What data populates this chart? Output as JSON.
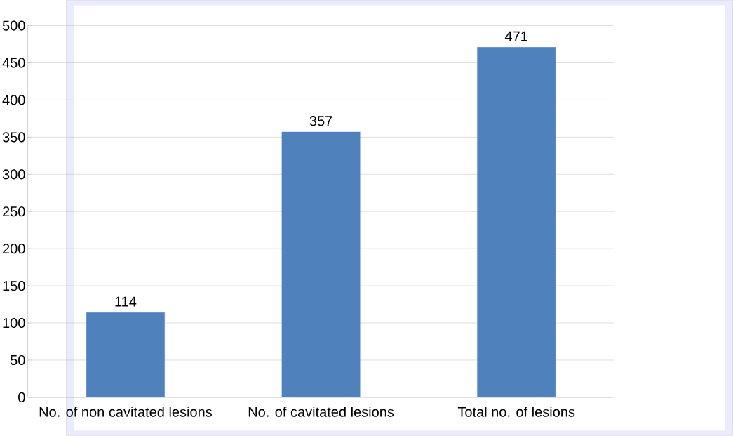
{
  "chart_data": {
    "type": "bar",
    "categories": [
      "No. of non cavitated lesions",
      "No. of cavitated lesions",
      "Total no. of lesions"
    ],
    "values": [
      114,
      357,
      471
    ],
    "color": "#4f81bd",
    "ylim": [
      0,
      500
    ],
    "yticks": [
      0,
      50,
      100,
      150,
      200,
      250,
      300,
      350,
      400,
      450,
      500
    ],
    "grid": "y",
    "data_labels": true
  }
}
